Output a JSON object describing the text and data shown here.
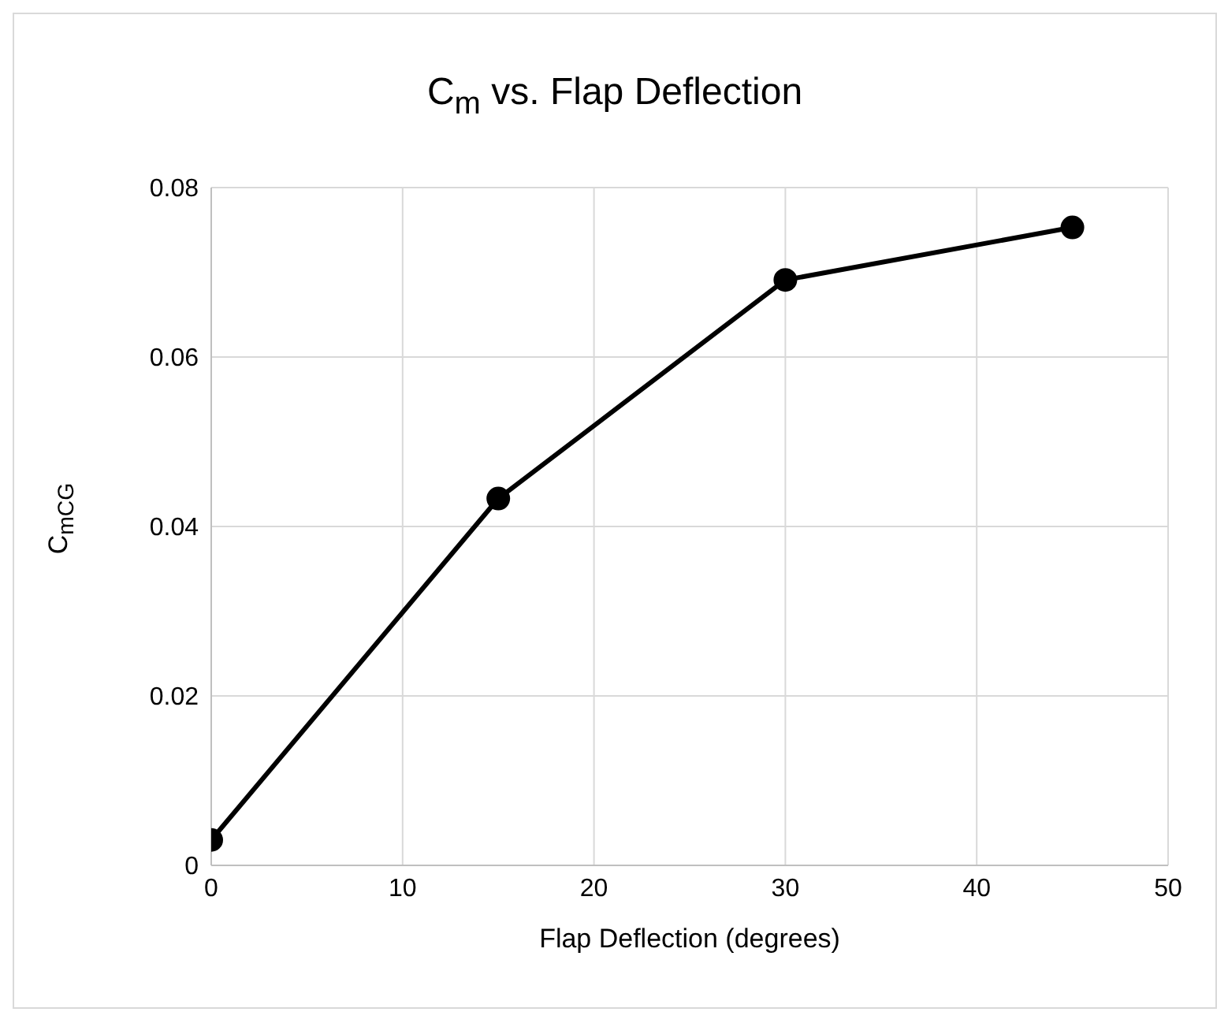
{
  "chart_data": {
    "type": "line",
    "title": "C$_{m}$ vs. Flap Deflection",
    "xlabel": "Flap Deflection (degrees)",
    "ylabel": "C$_{mCG}$",
    "x": [
      0,
      15,
      30,
      45
    ],
    "series": [
      {
        "color": "#000000",
        "values": [
          0.003,
          0.0433,
          0.0691,
          0.0753
        ]
      }
    ],
    "xlim": [
      0,
      50
    ],
    "xticks": [
      0,
      10,
      20,
      30,
      40,
      50
    ],
    "ylim": [
      0,
      0.08
    ],
    "yticks": [
      0,
      0.02,
      0.04,
      0.06,
      0.08
    ],
    "grid": true,
    "marker": "circle",
    "line_style": "solid"
  }
}
